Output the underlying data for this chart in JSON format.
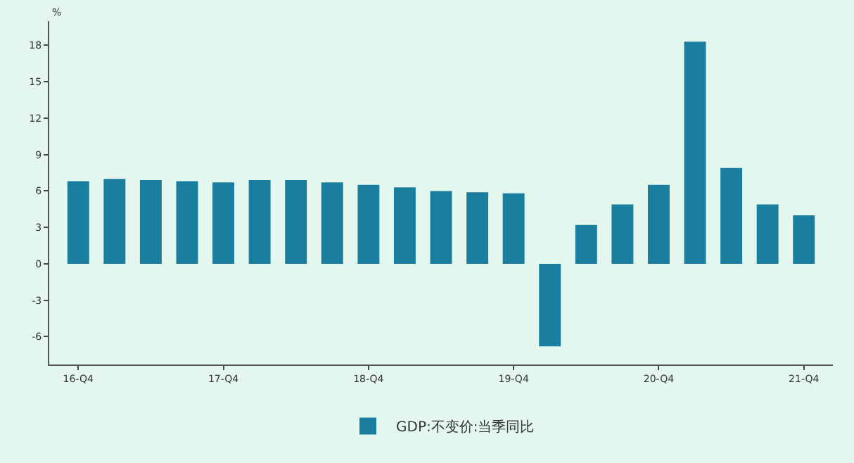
{
  "chart_data": {
    "type": "bar",
    "ylabel": "%",
    "categories": [
      "16-Q4",
      null,
      null,
      null,
      "17-Q4",
      null,
      null,
      null,
      "18-Q4",
      null,
      null,
      null,
      "19-Q4",
      null,
      null,
      null,
      "20-Q4",
      null,
      null,
      null,
      "21-Q4"
    ],
    "series": [
      {
        "name": "GDP:不变价:当季同比",
        "color": "#1a7f9e",
        "values": [
          6.8,
          7.0,
          6.9,
          6.8,
          6.7,
          6.9,
          6.9,
          6.7,
          6.5,
          6.3,
          6.0,
          5.9,
          5.8,
          -6.8,
          3.2,
          4.9,
          6.5,
          18.3,
          7.9,
          4.9,
          4.0
        ]
      }
    ],
    "ylim": [
      -8.3,
      20
    ],
    "yticks": [
      -6,
      -3,
      0,
      3,
      6,
      9,
      12,
      15,
      18
    ],
    "grid": false,
    "legend": "bottom"
  }
}
